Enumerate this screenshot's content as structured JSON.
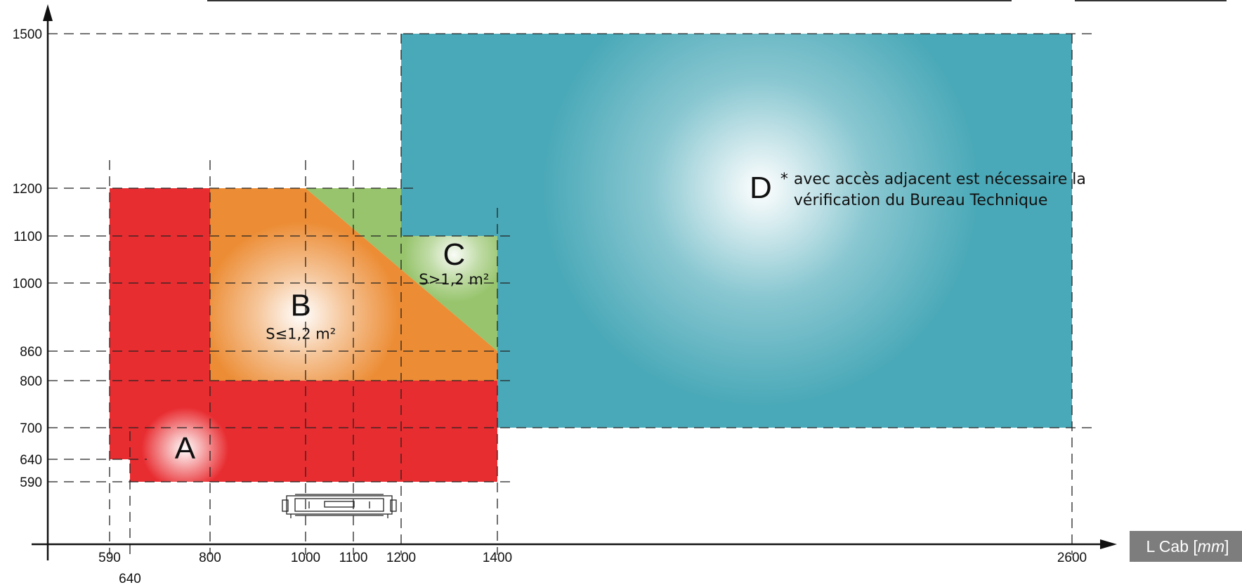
{
  "chart_data": {
    "type": "area",
    "title": "",
    "xlabel": "L Cab",
    "xlabel_unit": "mm",
    "ylabel": "",
    "xlim": [
      420,
      2600
    ],
    "ylim": [
      420,
      1500
    ],
    "x_ticks": [
      590,
      640,
      800,
      1000,
      1100,
      1200,
      1400,
      2600
    ],
    "y_ticks": [
      590,
      640,
      700,
      800,
      860,
      1000,
      1100,
      1200,
      1500
    ],
    "regions": [
      {
        "id": "A",
        "letter": "A",
        "subtitle": "",
        "color": "#e82d31",
        "polygon": [
          [
            590,
            1200
          ],
          [
            800,
            1200
          ],
          [
            800,
            800
          ],
          [
            1400,
            800
          ],
          [
            1400,
            590
          ],
          [
            640,
            590
          ],
          [
            640,
            640
          ],
          [
            590,
            640
          ]
        ],
        "label_at": [
          750,
          660
        ]
      },
      {
        "id": "B",
        "letter": "B",
        "subtitle": "S≤1,2 m²",
        "color": "#ec8c34",
        "polygon": [
          [
            800,
            1200
          ],
          [
            1000,
            1200
          ],
          [
            1400,
            860
          ],
          [
            1400,
            800
          ],
          [
            800,
            800
          ]
        ],
        "label_at": [
          990,
          950
        ]
      },
      {
        "id": "C",
        "letter": "C",
        "subtitle": "S>1,2 m²",
        "color": "#97c46c",
        "polygon": [
          [
            1000,
            1200
          ],
          [
            1200,
            1200
          ],
          [
            1200,
            1100
          ],
          [
            1400,
            1100
          ],
          [
            1400,
            860
          ]
        ],
        "label_at": [
          1310,
          1060
        ]
      },
      {
        "id": "D",
        "letter": "D",
        "subtitle": "",
        "color": "#4aa9b8",
        "polygon": [
          [
            1200,
            1500
          ],
          [
            2600,
            1500
          ],
          [
            2600,
            700
          ],
          [
            1400,
            700
          ],
          [
            1400,
            1100
          ],
          [
            1200,
            1100
          ]
        ],
        "label_at": [
          1950,
          1200
        ]
      }
    ],
    "annotation": {
      "marker": "*",
      "lines": [
        "avec accès adjacent est nécessaire la",
        "vérification du Bureau Technique"
      ]
    },
    "grid": "dashed",
    "legend": "none"
  }
}
